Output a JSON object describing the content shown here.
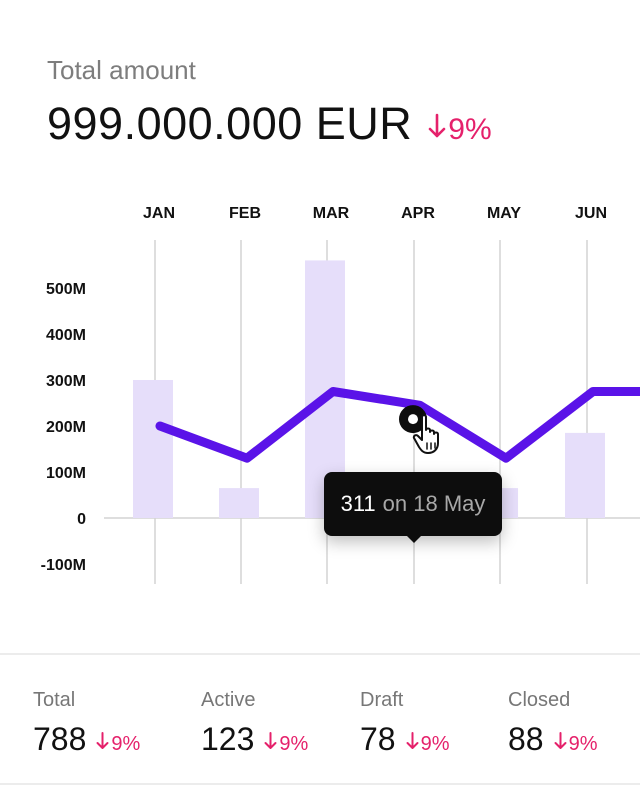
{
  "header": {
    "label": "Total amount",
    "value": "999.000.000 EUR",
    "delta": "9%",
    "delta_direction": "down"
  },
  "colors": {
    "line": "#5a13e8",
    "bar": "#e6defa",
    "negative": "#e5216b",
    "grid": "#d4d4d4"
  },
  "chart_data": {
    "type": "bar",
    "categories": [
      "JAN",
      "FEB",
      "MAR",
      "APR",
      "MAY",
      "JUN"
    ],
    "series": [
      {
        "kind": "bar",
        "values": [
          300,
          65,
          560,
          65,
          65,
          185
        ]
      },
      {
        "kind": "line",
        "values": [
          200,
          130,
          275,
          245,
          130,
          275
        ],
        "extends_right": true
      }
    ],
    "y_ticks": [
      "500M",
      "400M",
      "300M",
      "200M",
      "100M",
      "0",
      "-100M"
    ],
    "y_tick_values": [
      500,
      400,
      300,
      200,
      100,
      0,
      -100
    ],
    "ylim": [
      -150,
      560
    ],
    "highlight": {
      "value": "311",
      "label": "on 18 May"
    }
  },
  "stats": [
    {
      "label": "Total",
      "value": "788",
      "delta": "9%"
    },
    {
      "label": "Active",
      "value": "123",
      "delta": "9%"
    },
    {
      "label": "Draft",
      "value": "78",
      "delta": "9%"
    },
    {
      "label": "Closed",
      "value": "88",
      "delta": "9%"
    }
  ],
  "icons": {
    "delta_arrow": "arrow-down-icon",
    "cursor": "hand-pointer-icon"
  }
}
